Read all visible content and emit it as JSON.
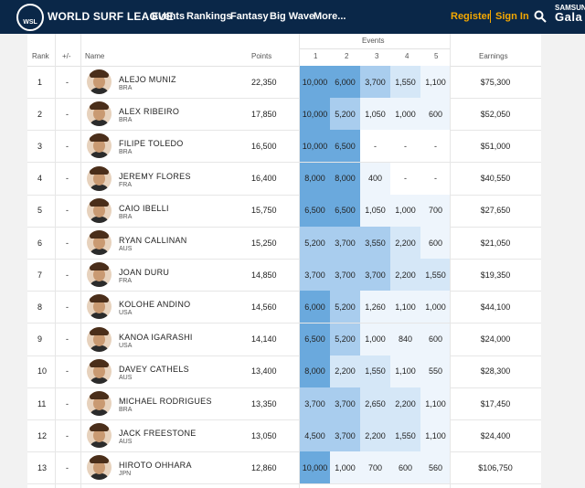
{
  "nav": {
    "logo_mark": "WSL",
    "logo_text": "WORLD SURF LEAGUE",
    "items": [
      "Events",
      "Rankings",
      "Fantasy",
      "Big Wave",
      "More..."
    ],
    "register": "Register",
    "signin": "Sign In",
    "sponsor_top": "SAMSUNG",
    "sponsor_bottom": "Gala"
  },
  "table": {
    "headers": {
      "rank": "Rank",
      "change": "+/-",
      "name": "Name",
      "points": "Points",
      "events": "Events",
      "event_cols": [
        "1",
        "2",
        "3",
        "4",
        "5"
      ],
      "earnings": "Earnings"
    },
    "rows": [
      {
        "rank": "1",
        "change": "-",
        "name": "ALEJO MUNIZ",
        "country": "BRA",
        "points": "22,350",
        "events": [
          "10,000",
          "6,000",
          "3,700",
          "1,550",
          "1,100"
        ],
        "earnings": "$75,300"
      },
      {
        "rank": "2",
        "change": "-",
        "name": "ALEX RIBEIRO",
        "country": "BRA",
        "points": "17,850",
        "events": [
          "10,000",
          "5,200",
          "1,050",
          "1,000",
          "600"
        ],
        "earnings": "$52,050"
      },
      {
        "rank": "3",
        "change": "-",
        "name": "FILIPE TOLEDO",
        "country": "BRA",
        "points": "16,500",
        "events": [
          "10,000",
          "6,500",
          "-",
          "-",
          "-"
        ],
        "earnings": "$51,000"
      },
      {
        "rank": "4",
        "change": "-",
        "name": "JEREMY FLORES",
        "country": "FRA",
        "points": "16,400",
        "events": [
          "8,000",
          "8,000",
          "400",
          "-",
          "-"
        ],
        "earnings": "$40,550"
      },
      {
        "rank": "5",
        "change": "-",
        "name": "CAIO IBELLI",
        "country": "BRA",
        "points": "15,750",
        "events": [
          "6,500",
          "6,500",
          "1,050",
          "1,000",
          "700"
        ],
        "earnings": "$27,650"
      },
      {
        "rank": "6",
        "change": "-",
        "name": "RYAN CALLINAN",
        "country": "AUS",
        "points": "15,250",
        "events": [
          "5,200",
          "3,700",
          "3,550",
          "2,200",
          "600"
        ],
        "earnings": "$21,050"
      },
      {
        "rank": "7",
        "change": "-",
        "name": "JOAN DURU",
        "country": "FRA",
        "points": "14,850",
        "events": [
          "3,700",
          "3,700",
          "3,700",
          "2,200",
          "1,550"
        ],
        "earnings": "$19,350"
      },
      {
        "rank": "8",
        "change": "-",
        "name": "KOLOHE ANDINO",
        "country": "USA",
        "points": "14,560",
        "events": [
          "6,000",
          "5,200",
          "1,260",
          "1,100",
          "1,000"
        ],
        "earnings": "$44,100"
      },
      {
        "rank": "9",
        "change": "-",
        "name": "KANOA IGARASHI",
        "country": "USA",
        "points": "14,140",
        "events": [
          "6,500",
          "5,200",
          "1,000",
          "840",
          "600"
        ],
        "earnings": "$24,000"
      },
      {
        "rank": "10",
        "change": "-",
        "name": "DAVEY CATHELS",
        "country": "AUS",
        "points": "13,400",
        "events": [
          "8,000",
          "2,200",
          "1,550",
          "1,100",
          "550"
        ],
        "earnings": "$28,300"
      },
      {
        "rank": "11",
        "change": "-",
        "name": "MICHAEL RODRIGUES",
        "country": "BRA",
        "points": "13,350",
        "events": [
          "3,700",
          "3,700",
          "2,650",
          "2,200",
          "1,100"
        ],
        "earnings": "$17,450"
      },
      {
        "rank": "12",
        "change": "-",
        "name": "JACK FREESTONE",
        "country": "AUS",
        "points": "13,050",
        "events": [
          "4,500",
          "3,700",
          "2,200",
          "1,550",
          "1,100"
        ],
        "earnings": "$24,400"
      },
      {
        "rank": "13",
        "change": "-",
        "name": "HIROTO OHHARA",
        "country": "JPN",
        "points": "12,860",
        "events": [
          "10,000",
          "1,000",
          "700",
          "600",
          "560"
        ],
        "earnings": "$106,750"
      }
    ]
  },
  "colors": {
    "nav_bg": "#0a2748",
    "accent": "#f5a800",
    "heat_high": "#6aa9dd",
    "heat_mid": "#a9cdee",
    "heat_low": "#d5e7f7",
    "heat_min": "#eef5fc"
  }
}
